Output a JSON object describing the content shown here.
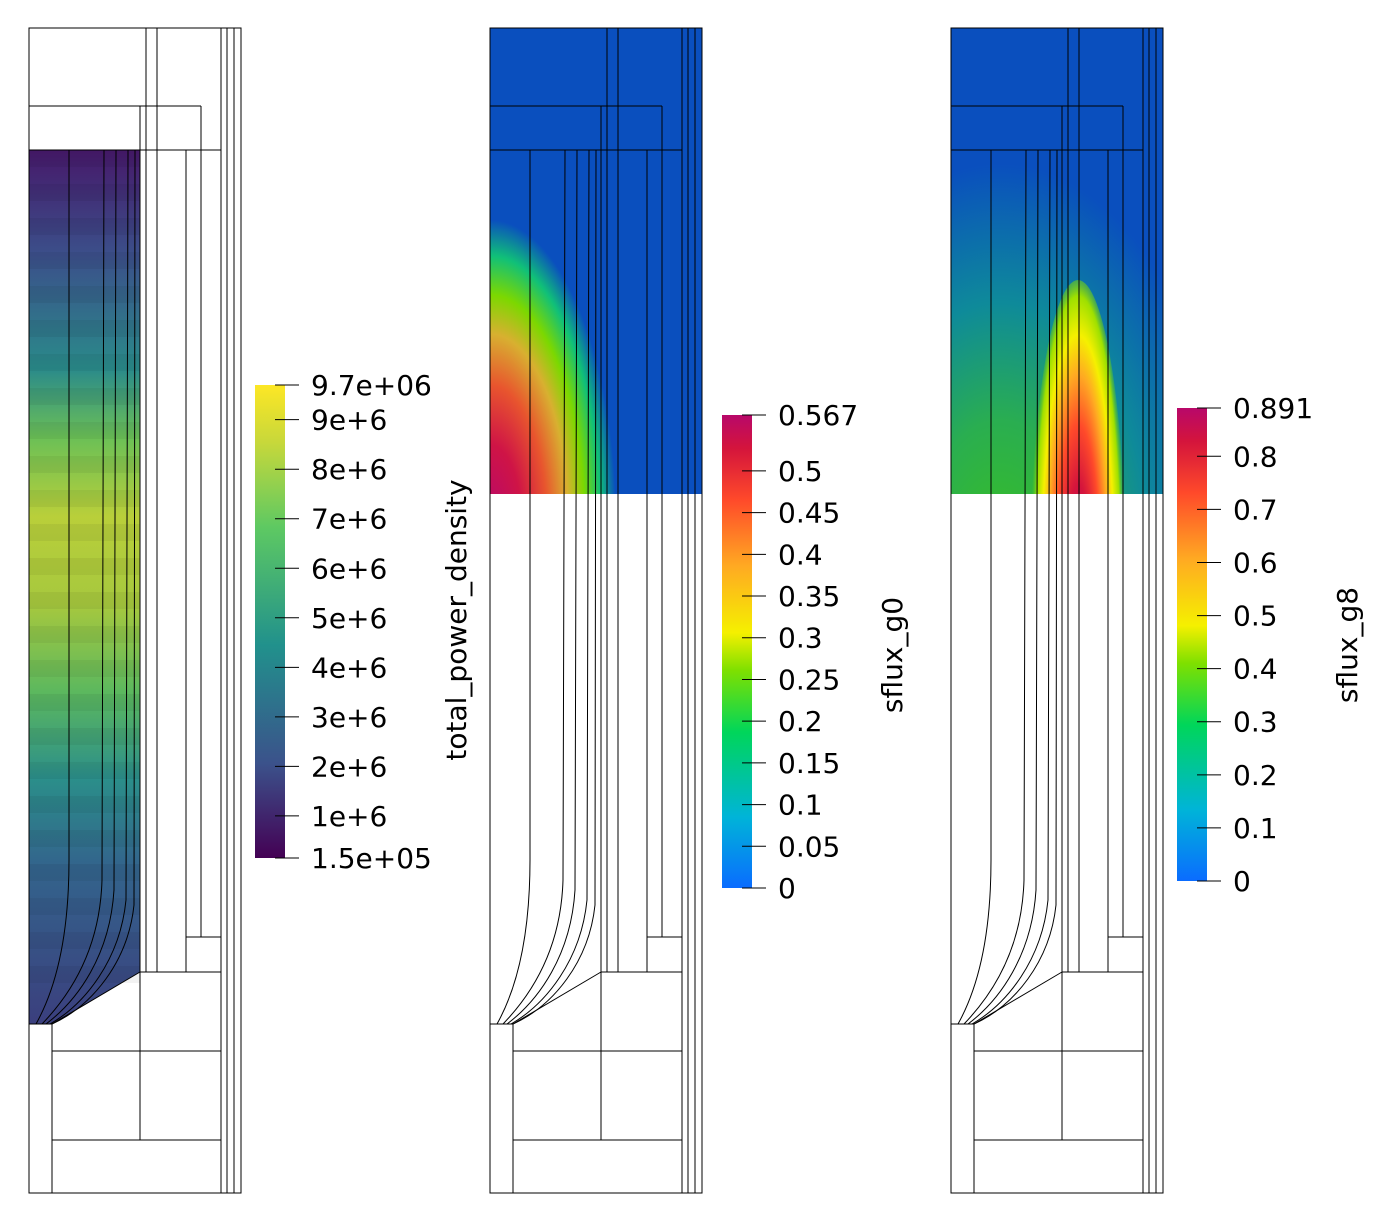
{
  "panels": [
    {
      "field": "total_power_density",
      "colormap": "viridis",
      "ticks": [
        "9.7e+06",
        "9e+6",
        "8e+6",
        "7e+6",
        "6e+6",
        "5e+6",
        "4e+6",
        "3e+6",
        "2e+6",
        "1e+6",
        "1.5e+05"
      ],
      "range": [
        150000,
        9700000
      ]
    },
    {
      "field": "sflux_g0",
      "colormap": "jet-like",
      "ticks": [
        "0.567",
        "0.5",
        "0.45",
        "0.4",
        "0.35",
        "0.3",
        "0.25",
        "0.2",
        "0.15",
        "0.1",
        "0.05",
        "0"
      ],
      "range": [
        0,
        0.567
      ]
    },
    {
      "field": "sflux_g8",
      "colormap": "jet-like",
      "ticks": [
        "0.891",
        "0.8",
        "0.7",
        "0.6",
        "0.5",
        "0.4",
        "0.3",
        "0.2",
        "0.1",
        "0"
      ],
      "range": [
        0,
        0.891
      ]
    }
  ],
  "colors": {
    "background_blue": "#0a4fbe",
    "viridis": [
      "#440154",
      "#3b528b",
      "#21918c",
      "#5ec962",
      "#c8d83a",
      "#fde725"
    ],
    "jet": [
      "#0a6cff",
      "#00b4d8",
      "#00d65a",
      "#7ee000",
      "#f5f000",
      "#ffaa22",
      "#ff4a2a",
      "#d4143c",
      "#b8086a"
    ]
  }
}
